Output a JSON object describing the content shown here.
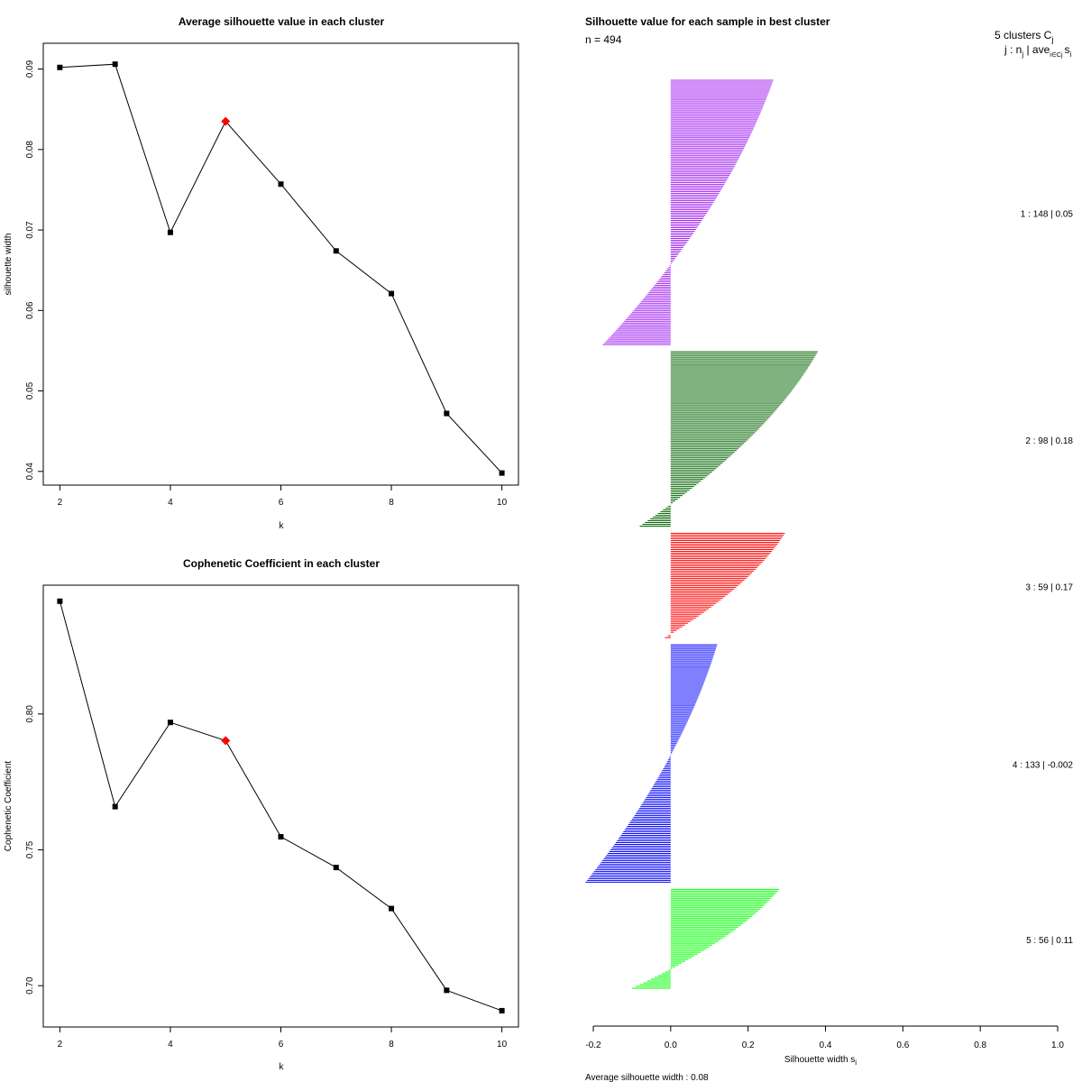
{
  "chart_data": [
    {
      "type": "line",
      "title": "Average silhouette value in each cluster",
      "xlabel": "k",
      "ylabel": "silhouette width",
      "x": [
        2,
        3,
        4,
        5,
        6,
        7,
        8,
        9,
        10
      ],
      "y": [
        0.0902,
        0.0906,
        0.0697,
        0.0835,
        0.0757,
        0.0674,
        0.0621,
        0.0472,
        0.0398
      ],
      "highlight_x": 5,
      "xlim": [
        1.7,
        10.3
      ],
      "ylim": [
        0.0383,
        0.0932
      ],
      "xticks": [
        2,
        4,
        6,
        8,
        10
      ],
      "yticks": [
        0.04,
        0.05,
        0.06,
        0.07,
        0.08,
        0.09
      ],
      "ytick_labels": [
        "0.04",
        "0.05",
        "0.06",
        "0.07",
        "0.08",
        "0.09"
      ],
      "point_color": "#000000",
      "highlight_color": "#ff0000"
    },
    {
      "type": "line",
      "title": "Cophenetic Coefficient in each cluster",
      "xlabel": "k",
      "ylabel": "Cophenetic Coefficient",
      "x": [
        2,
        3,
        4,
        5,
        6,
        7,
        8,
        9,
        10
      ],
      "y": [
        0.8415,
        0.7659,
        0.7969,
        0.7902,
        0.7548,
        0.7435,
        0.7284,
        0.6983,
        0.6908
      ],
      "highlight_x": 5,
      "xlim": [
        1.7,
        10.3
      ],
      "ylim": [
        0.6848,
        0.8474
      ],
      "xticks": [
        2,
        4,
        6,
        8,
        10
      ],
      "yticks": [
        0.7,
        0.75,
        0.8
      ],
      "ytick_labels": [
        "0.70",
        "0.75",
        "0.80"
      ],
      "point_color": "#000000",
      "highlight_color": "#ff0000"
    },
    {
      "type": "bar",
      "orientation": "horizontal",
      "title": "Silhouette value for each sample in best cluster",
      "n_label": "n = 494",
      "xlabel": "Silhouette width s",
      "xlabel_sub": "i",
      "footer": "Average silhouette width :  0.08",
      "xlim": [
        -0.2,
        1.0
      ],
      "xticks": [
        -0.2,
        0.0,
        0.2,
        0.4,
        0.6,
        0.8,
        1.0
      ],
      "xtick_labels": [
        "-0.2",
        "0.0",
        "0.2",
        "0.4",
        "0.6",
        "0.8",
        "1.0"
      ],
      "legend_title": "5  clusters  C",
      "legend_title_sub": "j",
      "legend_header": "j :  n",
      "legend_header_mid": " | ave",
      "legend_header_tail": "s",
      "legend_sub_j": "j",
      "legend_sub_ij": "i∈Cj",
      "legend_sub_i": "i",
      "clusters": [
        {
          "id": 1,
          "n": 148,
          "avg": 0.05,
          "label": "1 :  148  |  0.05",
          "color": "#a020f0",
          "max": 0.265,
          "min": -0.175
        },
        {
          "id": 2,
          "n": 98,
          "avg": 0.18,
          "label": "2 :  98  |  0.18",
          "color": "#006400",
          "max": 0.38,
          "min": -0.08
        },
        {
          "id": 3,
          "n": 59,
          "avg": 0.17,
          "label": "3 :  59  |  0.17",
          "color": "#ff0000",
          "max": 0.295,
          "min": -0.015
        },
        {
          "id": 4,
          "n": 133,
          "avg": -0.002,
          "label": "4 :  133  |  -0.002",
          "color": "#0000ff",
          "max": 0.12,
          "min": -0.22
        },
        {
          "id": 5,
          "n": 56,
          "avg": 0.11,
          "label": "5 :  56  |  0.11",
          "color": "#00ff00",
          "max": 0.28,
          "min": -0.1
        }
      ]
    }
  ]
}
